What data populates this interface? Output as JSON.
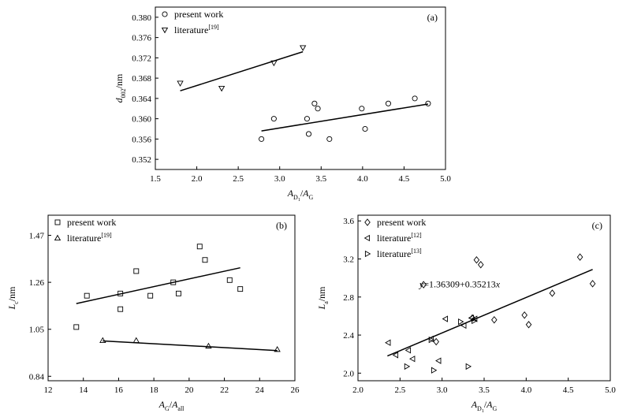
{
  "chart_data": [
    {
      "id": "a",
      "type": "scatter",
      "panel_label": "(a)",
      "xlabel": {
        "main": "A",
        "num_sub": "D",
        "num_sub2": "1",
        "slash": "/",
        "den": "A",
        "den_sub": "G"
      },
      "ylabel": {
        "main": "d",
        "sub": "002",
        "unit": "/nm"
      },
      "xlim": [
        1.5,
        5.0
      ],
      "ylim": [
        0.35,
        0.382
      ],
      "xticks": [
        1.5,
        2.0,
        2.5,
        3.0,
        3.5,
        4.0,
        4.5,
        5.0
      ],
      "xtick_labels": [
        "1.5",
        "2.0",
        "2.5",
        "3.0",
        "3.5",
        "4.0",
        "4.5",
        "5.0"
      ],
      "yticks": [
        0.352,
        0.356,
        0.36,
        0.364,
        0.368,
        0.372,
        0.376,
        0.38
      ],
      "ytick_labels": [
        "0.352",
        "0.356",
        "0.360",
        "0.364",
        "0.368",
        "0.372",
        "0.376",
        "0.380"
      ],
      "legend_position": "top-left",
      "series": [
        {
          "name": "present work",
          "marker": "circle",
          "points": [
            [
              2.78,
              0.356
            ],
            [
              2.93,
              0.36
            ],
            [
              3.33,
              0.36
            ],
            [
              3.35,
              0.357
            ],
            [
              3.42,
              0.363
            ],
            [
              3.46,
              0.362
            ],
            [
              3.6,
              0.356
            ],
            [
              3.99,
              0.362
            ],
            [
              4.03,
              0.358
            ],
            [
              4.31,
              0.363
            ],
            [
              4.63,
              0.364
            ],
            [
              4.79,
              0.363
            ]
          ],
          "fit": [
            [
              2.78,
              0.3576
            ],
            [
              4.79,
              0.3629
            ]
          ]
        },
        {
          "name": "literature",
          "name_sup": "[19]",
          "marker": "triangle-down",
          "points": [
            [
              1.8,
              0.367
            ],
            [
              2.3,
              0.366
            ],
            [
              2.93,
              0.371
            ],
            [
              3.28,
              0.374
            ]
          ],
          "fit": [
            [
              1.8,
              0.3655
            ],
            [
              3.28,
              0.3732
            ]
          ]
        }
      ]
    },
    {
      "id": "b",
      "type": "scatter",
      "panel_label": "(b)",
      "xlabel": {
        "main": "A",
        "num_sub": "G",
        "slash": "/",
        "den": "A",
        "den_sub": "all"
      },
      "ylabel": {
        "main": "L",
        "sub": "c",
        "unit": "/nm"
      },
      "xlim": [
        12,
        26
      ],
      "ylim": [
        0.82,
        1.56
      ],
      "xticks": [
        12,
        14,
        16,
        18,
        20,
        22,
        24,
        26
      ],
      "xtick_labels": [
        "12",
        "14",
        "16",
        "18",
        "20",
        "22",
        "24",
        "26"
      ],
      "yticks": [
        0.84,
        1.05,
        1.26,
        1.47
      ],
      "ytick_labels": [
        "0.84",
        "1.05",
        "1.26",
        "1.47"
      ],
      "legend_position": "top-left",
      "series": [
        {
          "name": "present work",
          "marker": "square",
          "points": [
            [
              13.6,
              1.06
            ],
            [
              14.2,
              1.2
            ],
            [
              16.1,
              1.14
            ],
            [
              16.1,
              1.21
            ],
            [
              17.0,
              1.31
            ],
            [
              17.8,
              1.2
            ],
            [
              19.1,
              1.26
            ],
            [
              19.4,
              1.21
            ],
            [
              20.6,
              1.42
            ],
            [
              20.9,
              1.36
            ],
            [
              22.3,
              1.27
            ],
            [
              22.9,
              1.23
            ]
          ],
          "fit": [
            [
              13.6,
              1.165
            ],
            [
              22.9,
              1.325
            ]
          ]
        },
        {
          "name": "literature",
          "name_sup": "[19]",
          "marker": "triangle-up",
          "points": [
            [
              15.1,
              1.0
            ],
            [
              17.0,
              1.0
            ],
            [
              21.1,
              0.975
            ],
            [
              25.0,
              0.96
            ]
          ],
          "fit": [
            [
              15.1,
              0.998
            ],
            [
              25.0,
              0.955
            ]
          ]
        }
      ]
    },
    {
      "id": "c",
      "type": "scatter",
      "panel_label": "(c)",
      "xlabel": {
        "main": "A",
        "num_sub": "D",
        "num_sub2": "1",
        "slash": "/",
        "den": "A",
        "den_sub": "G"
      },
      "ylabel": {
        "main": "L",
        "sub": "a",
        "unit": "/nm"
      },
      "xlim": [
        2.0,
        5.0
      ],
      "ylim": [
        1.92,
        3.66
      ],
      "xticks": [
        2.0,
        2.5,
        3.0,
        3.5,
        4.0,
        4.5,
        5.0
      ],
      "xtick_labels": [
        "2.0",
        "2.5",
        "3.0",
        "3.5",
        "4.0",
        "4.5",
        "5.0"
      ],
      "yticks": [
        2.0,
        2.4,
        2.8,
        3.2,
        3.6
      ],
      "ytick_labels": [
        "2.0",
        "2.4",
        "2.8",
        "3.2",
        "3.6"
      ],
      "legend_position": "top-left",
      "annotation": {
        "text": "y=1.36309+0.35213x",
        "pre": "y",
        "mid": "=1.36309+0.35213",
        "post": "x",
        "x": 2.73,
        "y": 2.9
      },
      "series": [
        {
          "name": "present work",
          "marker": "diamond",
          "points": [
            [
              2.78,
              2.93
            ],
            [
              2.93,
              2.33
            ],
            [
              3.36,
              2.58
            ],
            [
              3.41,
              3.19
            ],
            [
              3.46,
              3.14
            ],
            [
              3.62,
              2.56
            ],
            [
              3.98,
              2.61
            ],
            [
              4.03,
              2.51
            ],
            [
              4.31,
              2.84
            ],
            [
              4.64,
              3.22
            ],
            [
              4.79,
              2.94
            ]
          ],
          "fit": [
            [
              2.35,
              2.18
            ],
            [
              4.79,
              3.09
            ]
          ]
        },
        {
          "name": "literature",
          "name_sup": "[12]",
          "marker": "triangle-left",
          "points": [
            [
              2.36,
              2.32
            ],
            [
              2.45,
              2.19
            ],
            [
              2.6,
              2.24
            ],
            [
              2.65,
              2.15
            ],
            [
              2.87,
              2.36
            ],
            [
              2.96,
              2.13
            ],
            [
              3.04,
              2.57
            ],
            [
              3.26,
              2.5
            ],
            [
              3.35,
              2.58
            ],
            [
              3.39,
              2.57
            ]
          ]
        },
        {
          "name": "literature",
          "name_sup": "[13]",
          "marker": "triangle-right",
          "points": [
            [
              2.58,
              2.07
            ],
            [
              2.87,
              2.35
            ],
            [
              2.9,
              2.03
            ],
            [
              3.22,
              2.54
            ],
            [
              3.31,
              2.07
            ],
            [
              3.38,
              2.55
            ]
          ]
        }
      ]
    }
  ]
}
